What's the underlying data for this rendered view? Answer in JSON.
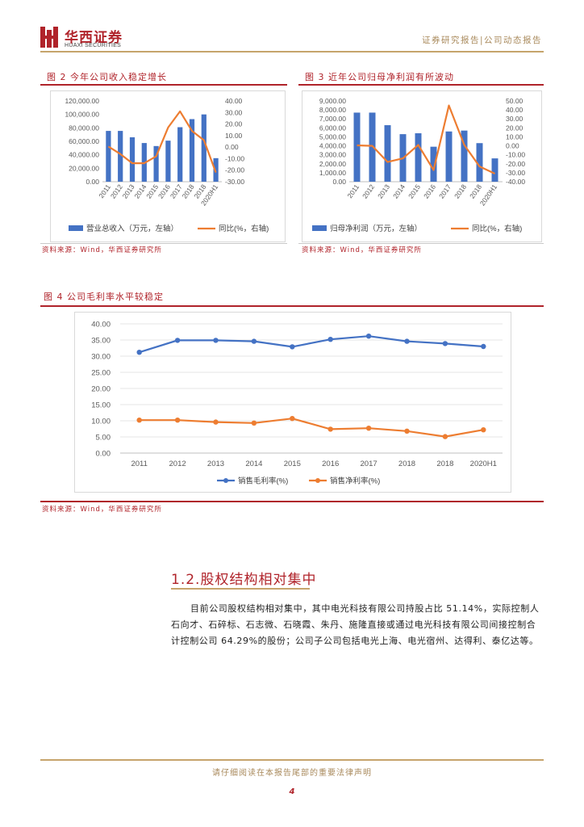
{
  "header": {
    "logo_cn": "华西证券",
    "logo_en": "HUAXI SECURITIES",
    "right": "证券研究报告|公司动态报告"
  },
  "fig2": {
    "title": "图 2   今年公司收入稳定增长",
    "source": "资料来源：Wind，华西证券研究所"
  },
  "fig3": {
    "title": "图 3   近年公司归母净利润有所波动",
    "source": "资料来源：Wind，华西证券研究所"
  },
  "fig4": {
    "title": "图 4   公司毛利率水平较稳定",
    "source": "资料来源：Wind，华西证券研究所"
  },
  "section": {
    "title": "1.2.股权结构相对集中",
    "body": "目前公司股权结构相对集中，其中电光科技有限公司持股占比 51.14%，实际控制人石向才、石碎标、石志微、石晓霞、朱丹、施隆直接或通过电光科技有限公司间接控制合计控制公司 64.29%的股份；公司子公司包括电光上海、电光宿州、达得利、泰亿达等。"
  },
  "footer": {
    "disclaimer": "请仔细阅读在本报告尾部的重要法律声明",
    "page": "4"
  },
  "colors": {
    "bar": "#4472c4",
    "line": "#ed7d31",
    "brand": "#b0232a",
    "gold": "#c6a46c"
  },
  "chart_data": [
    {
      "type": "bar",
      "categories": [
        "2011",
        "2012",
        "2013",
        "2014",
        "2015",
        "2016",
        "2017",
        "2018",
        "2018",
        "2020H1"
      ],
      "series": [
        {
          "name": "营业总收入（万元，左轴）",
          "type": "bar",
          "axis": "left",
          "values": [
            75500,
            75500,
            66000,
            57500,
            53000,
            61000,
            81000,
            93000,
            100000,
            35000
          ]
        },
        {
          "name": "同比(%，右轴)",
          "type": "line",
          "axis": "right",
          "values": [
            0.5,
            -6,
            -14,
            -14,
            -8,
            17,
            31,
            14,
            6,
            -22
          ]
        }
      ],
      "left_ticks": [
        "0.00",
        "20,000.00",
        "40,000.00",
        "60,000.00",
        "80,000.00",
        "100,000.00",
        "120,000.00"
      ],
      "right_ticks": [
        "-30.00",
        "-20.00",
        "-10.00",
        "0.00",
        "10.00",
        "20.00",
        "30.00",
        "40.00"
      ],
      "ylim_left": [
        0,
        120000
      ],
      "ylim_right": [
        -30,
        40
      ],
      "legend": "bottom"
    },
    {
      "type": "bar",
      "categories": [
        "2011",
        "2012",
        "2013",
        "2014",
        "2015",
        "2016",
        "2017",
        "2018",
        "2018",
        "2020H1"
      ],
      "series": [
        {
          "name": "归母净利润（万元，左轴）",
          "type": "bar",
          "axis": "left",
          "values": [
            7700,
            7700,
            6300,
            5300,
            5400,
            3900,
            5600,
            5700,
            4300,
            2600
          ]
        },
        {
          "name": "同比(%，右轴)",
          "type": "line",
          "axis": "right",
          "values": [
            0.5,
            0,
            -18,
            -14,
            1,
            -27,
            45,
            1,
            -23,
            -31
          ]
        }
      ],
      "left_ticks": [
        "0.00",
        "1,000.00",
        "2,000.00",
        "3,000.00",
        "4,000.00",
        "5,000.00",
        "6,000.00",
        "7,000.00",
        "8,000.00",
        "9,000.00"
      ],
      "right_ticks": [
        "-40.00",
        "-30.00",
        "-20.00",
        "-10.00",
        "0.00",
        "10.00",
        "20.00",
        "30.00",
        "40.00",
        "50.00"
      ],
      "ylim_left": [
        0,
        9000
      ],
      "ylim_right": [
        -40,
        50
      ],
      "legend": "bottom"
    },
    {
      "type": "line",
      "categories": [
        "2011",
        "2012",
        "2013",
        "2014",
        "2015",
        "2016",
        "2017",
        "2018",
        "2018",
        "2020H1"
      ],
      "series": [
        {
          "name": "销售毛利率(%)",
          "values": [
            31.2,
            34.9,
            34.9,
            34.6,
            32.9,
            35.2,
            36.2,
            34.6,
            33.9,
            33.0
          ]
        },
        {
          "name": "销售净利率(%)",
          "values": [
            10.2,
            10.2,
            9.6,
            9.3,
            10.7,
            7.4,
            7.7,
            6.8,
            5.1,
            7.2
          ]
        }
      ],
      "y_ticks": [
        "0.00",
        "5.00",
        "10.00",
        "15.00",
        "20.00",
        "25.00",
        "30.00",
        "35.00",
        "40.00"
      ],
      "ylim": [
        0,
        40
      ],
      "legend": "bottom"
    }
  ]
}
